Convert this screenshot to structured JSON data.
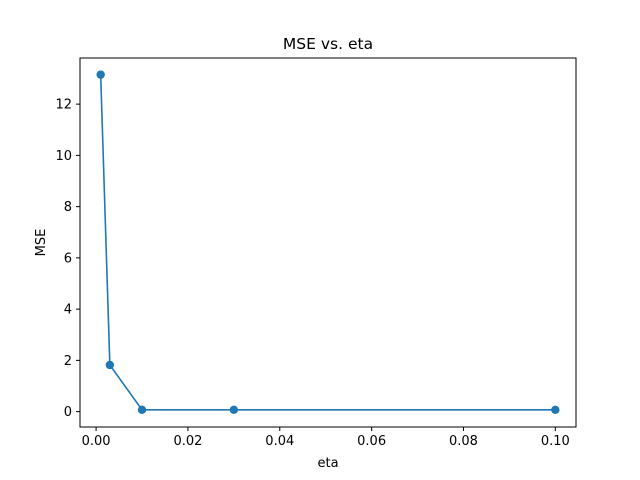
{
  "chart_data": {
    "type": "line",
    "title": "MSE vs. eta",
    "xlabel": "eta",
    "ylabel": "MSE",
    "xlim": [
      -0.0035,
      0.1045
    ],
    "ylim": [
      -0.6,
      13.8
    ],
    "x_ticks": [
      0.0,
      0.02,
      0.04,
      0.06,
      0.08,
      0.1
    ],
    "x_tick_labels": [
      "0.00",
      "0.02",
      "0.04",
      "0.06",
      "0.08",
      "0.10"
    ],
    "y_ticks": [
      0,
      2,
      4,
      6,
      8,
      10,
      12
    ],
    "y_tick_labels": [
      "0",
      "2",
      "4",
      "6",
      "8",
      "10",
      "12"
    ],
    "grid": false,
    "legend": "none",
    "series": [
      {
        "color": "#1f77b4",
        "marker": "circle",
        "x": [
          0.001,
          0.003,
          0.01,
          0.03,
          0.1
        ],
        "y": [
          13.15,
          1.82,
          0.07,
          0.07,
          0.07
        ]
      }
    ]
  }
}
